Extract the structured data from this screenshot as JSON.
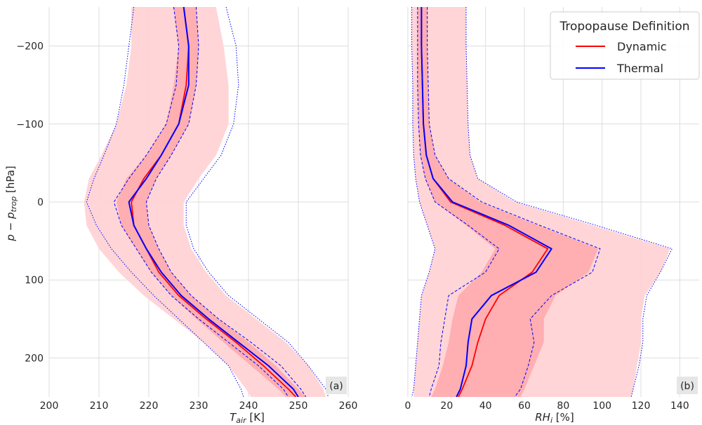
{
  "chart_data": [
    {
      "panel": "a",
      "type": "line",
      "panel_label": "(a)",
      "xlabel_main": "T",
      "xlabel_sub": "air",
      "xlabel_unit": " [K]",
      "ylabel_main": "p − p",
      "ylabel_sub": "trop",
      "ylabel_unit": " [hPa]",
      "xlim": [
        200,
        260
      ],
      "ylim": [
        250,
        -250
      ],
      "y_inverted": true,
      "xticks": [
        200,
        210,
        220,
        230,
        240,
        250,
        260
      ],
      "yticks": [
        -200,
        -100,
        0,
        100,
        200
      ],
      "grid": true,
      "y": [
        -250,
        -200,
        -150,
        -100,
        -60,
        -30,
        0,
        30,
        60,
        90,
        120,
        150,
        180,
        210,
        240,
        250
      ],
      "series": [
        {
          "name": "Dynamic",
          "color": "#ff0000",
          "median": [
            227,
            228,
            227.5,
            226,
            222.5,
            219,
            216.5,
            217,
            219.5,
            222,
            226,
            231.5,
            237.5,
            243,
            248,
            249.5
          ],
          "q25": [
            225,
            226,
            225,
            223.5,
            219.5,
            215.5,
            213.5,
            214.5,
            217.5,
            220.5,
            224.5,
            229.5,
            235,
            240.5,
            246,
            247.5
          ],
          "q75": [
            229.5,
            230,
            229.5,
            228,
            224.5,
            221.5,
            219.5,
            220,
            222,
            224.5,
            228.5,
            234,
            240,
            245.5,
            250,
            251.5
          ],
          "q05": [
            216.5,
            216.5,
            215.5,
            213.5,
            210.5,
            208,
            207,
            207.5,
            210,
            214,
            219,
            225,
            231,
            236,
            239.5,
            240.5
          ],
          "q95": [
            233.5,
            235,
            236,
            236,
            233.5,
            230,
            227,
            227,
            228.5,
            231.5,
            235.5,
            241.5,
            247.5,
            252,
            255,
            255.5
          ]
        },
        {
          "name": "Thermal",
          "color": "#0000ff",
          "median": [
            227,
            228,
            228,
            226,
            222.5,
            219.5,
            216,
            217,
            219.5,
            222.5,
            226.5,
            232,
            238,
            244,
            249,
            250
          ],
          "q25": [
            225,
            226,
            225.5,
            223.5,
            219.5,
            216,
            213,
            214.5,
            217.5,
            220.5,
            224.5,
            230,
            236,
            242,
            247,
            248
          ],
          "q75": [
            229.5,
            230,
            229.5,
            228,
            224.5,
            221.5,
            219.5,
            220,
            222,
            224.5,
            228.5,
            234,
            240.5,
            246.5,
            250.5,
            251.5
          ],
          "q05": [
            217,
            216,
            215,
            213.5,
            211,
            209,
            207.5,
            209.5,
            212.5,
            216.5,
            221,
            226,
            231,
            236,
            238.5,
            239
          ],
          "q95": [
            235.5,
            237.5,
            238,
            237,
            234.5,
            231,
            227.5,
            227.5,
            229,
            232,
            236,
            242,
            248,
            252,
            255.5,
            256
          ]
        }
      ]
    },
    {
      "panel": "b",
      "type": "line",
      "panel_label": "(b)",
      "xlabel_main": "RH",
      "xlabel_sub": "i",
      "xlabel_unit": " [%]",
      "xlim": [
        0,
        150
      ],
      "ylim": [
        250,
        -250
      ],
      "y_inverted": true,
      "xticks": [
        0,
        20,
        40,
        60,
        80,
        100,
        120,
        140
      ],
      "yticks": [
        -200,
        -100,
        0,
        100,
        200
      ],
      "grid": true,
      "y": [
        -250,
        -200,
        -150,
        -100,
        -60,
        -30,
        0,
        30,
        60,
        90,
        120,
        150,
        180,
        210,
        240,
        250
      ],
      "series": [
        {
          "name": "Dynamic",
          "color": "#ff0000",
          "median": [
            7,
            7,
            7.5,
            8,
            9.5,
            13,
            22,
            50,
            72,
            64,
            47,
            40,
            36,
            33,
            28,
            26
          ],
          "q25": [
            5,
            5,
            5,
            5.5,
            6.5,
            9,
            14,
            30,
            45,
            38,
            26,
            23,
            21,
            18,
            14,
            12
          ],
          "q75": [
            10,
            10,
            10.5,
            11,
            14,
            21,
            37,
            67,
            98,
            93,
            76,
            70,
            70,
            65,
            60,
            58
          ],
          "q05": [
            2,
            2,
            2.5,
            2.5,
            3,
            4,
            6,
            10,
            14,
            11,
            7,
            6,
            5,
            4,
            3,
            3
          ],
          "q95": [
            30,
            30,
            30.5,
            31,
            32,
            36,
            55,
            95,
            135,
            130,
            122,
            120,
            120,
            118,
            116,
            115
          ]
        },
        {
          "name": "Thermal",
          "color": "#0000ff",
          "median": [
            7,
            7,
            7.5,
            8,
            9.5,
            13,
            23,
            52,
            74,
            66,
            43,
            33,
            31,
            30,
            27,
            25
          ],
          "q25": [
            5,
            5,
            5,
            5.5,
            6.5,
            9,
            14,
            31,
            47,
            40,
            21,
            19,
            17,
            16,
            12,
            11
          ],
          "q75": [
            10,
            10,
            10.5,
            11,
            14,
            21,
            38,
            68,
            99,
            95,
            74,
            63,
            65,
            62,
            58,
            55
          ],
          "q05": [
            2,
            2,
            2.5,
            2.5,
            3,
            4,
            6,
            10,
            14,
            11,
            7,
            6,
            5,
            4,
            3,
            2
          ],
          "q95": [
            30,
            30,
            30.5,
            31,
            32,
            36,
            56,
            97,
            136,
            130,
            123,
            121,
            121,
            119,
            116,
            115
          ]
        }
      ]
    }
  ],
  "legend": {
    "title": "Tropopause Definition",
    "placement": "upper right of panel (b)",
    "items": [
      {
        "label": "Dynamic",
        "color": "#ff0000"
      },
      {
        "label": "Thermal",
        "color": "#0000ff"
      }
    ]
  },
  "style": {
    "band_outer_color": "#ffd3d5",
    "band_inner_color": "#ffaaae",
    "grid_color": "#dddddd"
  }
}
